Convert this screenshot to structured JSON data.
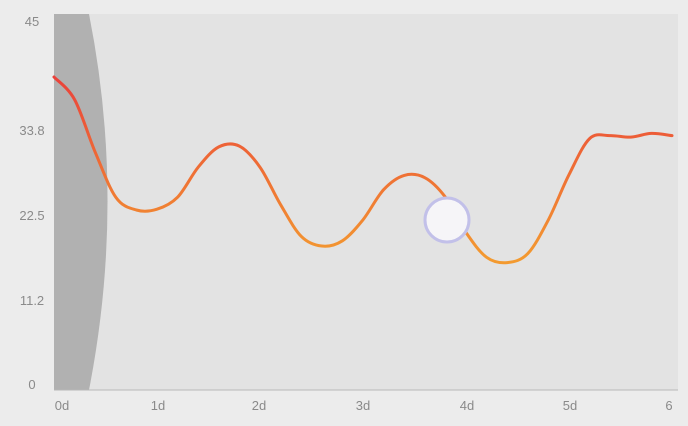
{
  "chart_data": {
    "type": "line",
    "title": "",
    "xlabel": "",
    "ylabel": "",
    "x_tick_labels": [
      "0d",
      "1d",
      "2d",
      "3d",
      "4d",
      "5d",
      "6"
    ],
    "y_tick_labels": [
      "0",
      "11.2",
      "22.5",
      "33.8",
      "45"
    ],
    "y_ticks": [
      0,
      11.2,
      22.5,
      33.8,
      45
    ],
    "xlim": [
      0,
      6
    ],
    "ylim": [
      0,
      45
    ],
    "grid": false,
    "series": [
      {
        "x": [
          0,
          0.2,
          0.4,
          0.6,
          0.8,
          1.0,
          1.2,
          1.4,
          1.6,
          1.8,
          2.0,
          2.2,
          2.4,
          2.6,
          2.8,
          3.0,
          3.2,
          3.4,
          3.6,
          3.8,
          4.0,
          4.2,
          4.4,
          4.6,
          4.8,
          5.0,
          5.2,
          5.4,
          5.6,
          5.8,
          6.0
        ],
        "y": [
          41,
          38,
          31,
          25,
          23.3,
          23.4,
          25,
          29,
          31.7,
          31.8,
          29,
          24,
          19.8,
          18.5,
          19.2,
          22,
          26,
          27.9,
          27.6,
          25,
          20.3,
          17,
          16.3,
          17.5,
          22,
          28,
          32.8,
          33.2,
          33,
          33.5,
          33.2
        ],
        "colors": [
          "#e8303d",
          "#f39a30"
        ]
      }
    ],
    "crosshair_band_x": [
      0,
      0.35
    ]
  },
  "colors": {
    "background": "#e3e3e3",
    "axis": "#b8b8b8",
    "band": "#b1b1b1",
    "marker_fill": "#f6f5f8",
    "marker_stroke": "#c2c0e9"
  }
}
